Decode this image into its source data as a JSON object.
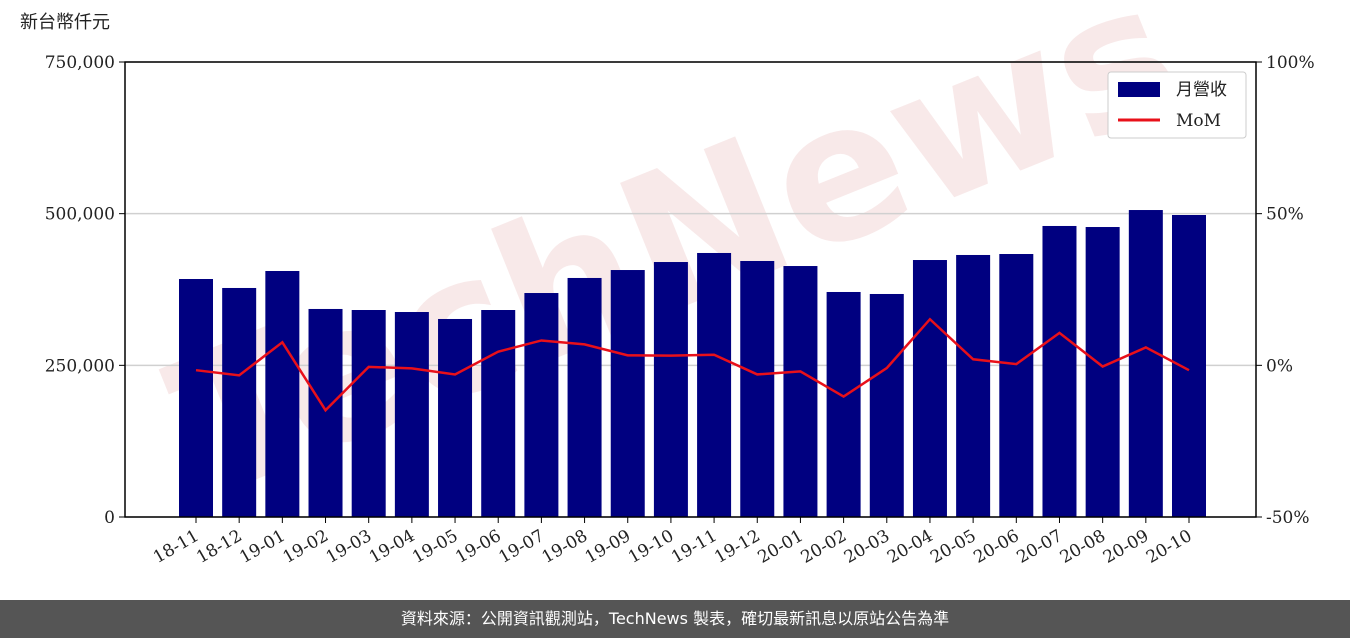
{
  "chart_data": {
    "type": "bar-line",
    "y_label": "新台幣仟元",
    "watermark": "TechNews",
    "categories": [
      "18-11",
      "18-12",
      "19-01",
      "19-02",
      "19-03",
      "19-04",
      "19-05",
      "19-06",
      "19-07",
      "19-08",
      "19-09",
      "19-10",
      "19-11",
      "19-12",
      "20-01",
      "20-02",
      "20-03",
      "20-04",
      "20-05",
      "20-06",
      "20-07",
      "20-08",
      "20-09",
      "20-10"
    ],
    "series": [
      {
        "name": "月營收",
        "type": "bar",
        "axis": "y",
        "color": "#000080",
        "values": [
          392300,
          377500,
          405500,
          342900,
          341200,
          337900,
          326400,
          341200,
          369200,
          394000,
          407100,
          420300,
          435200,
          422000,
          413700,
          370900,
          367600,
          423600,
          431900,
          433500,
          479700,
          478000,
          506000,
          497800
        ]
      },
      {
        "name": "MoM",
        "type": "line",
        "axis": "y2",
        "color": "#e8101a",
        "values": [
          -1.6,
          -3.3,
          7.6,
          -14.8,
          -0.5,
          -1.0,
          -3.0,
          4.5,
          8.2,
          6.9,
          3.3,
          3.2,
          3.5,
          -3.0,
          -2.0,
          -10.3,
          -0.9,
          15.2,
          2.0,
          0.4,
          10.7,
          -0.4,
          5.9,
          -1.6
        ]
      }
    ],
    "ylim": [
      0,
      750000
    ],
    "yticks": [
      0,
      {
        "value": 250000,
        "label": "250,000"
      },
      {
        "value": 500000,
        "label": "500,000"
      },
      {
        "value": 750000,
        "label": "750,000"
      }
    ],
    "y2lim": [
      -50,
      100
    ],
    "y2ticks": [
      {
        "value": -50,
        "label": "-50%"
      },
      {
        "value": 0,
        "label": "0%"
      },
      {
        "value": 50,
        "label": "50%"
      },
      {
        "value": 100,
        "label": "100%"
      }
    ],
    "grid": true,
    "legend": "upper right",
    "footer": "資料來源：公開資訊觀測站，TechNews 製表，確切最新訊息以原站公告為準"
  }
}
